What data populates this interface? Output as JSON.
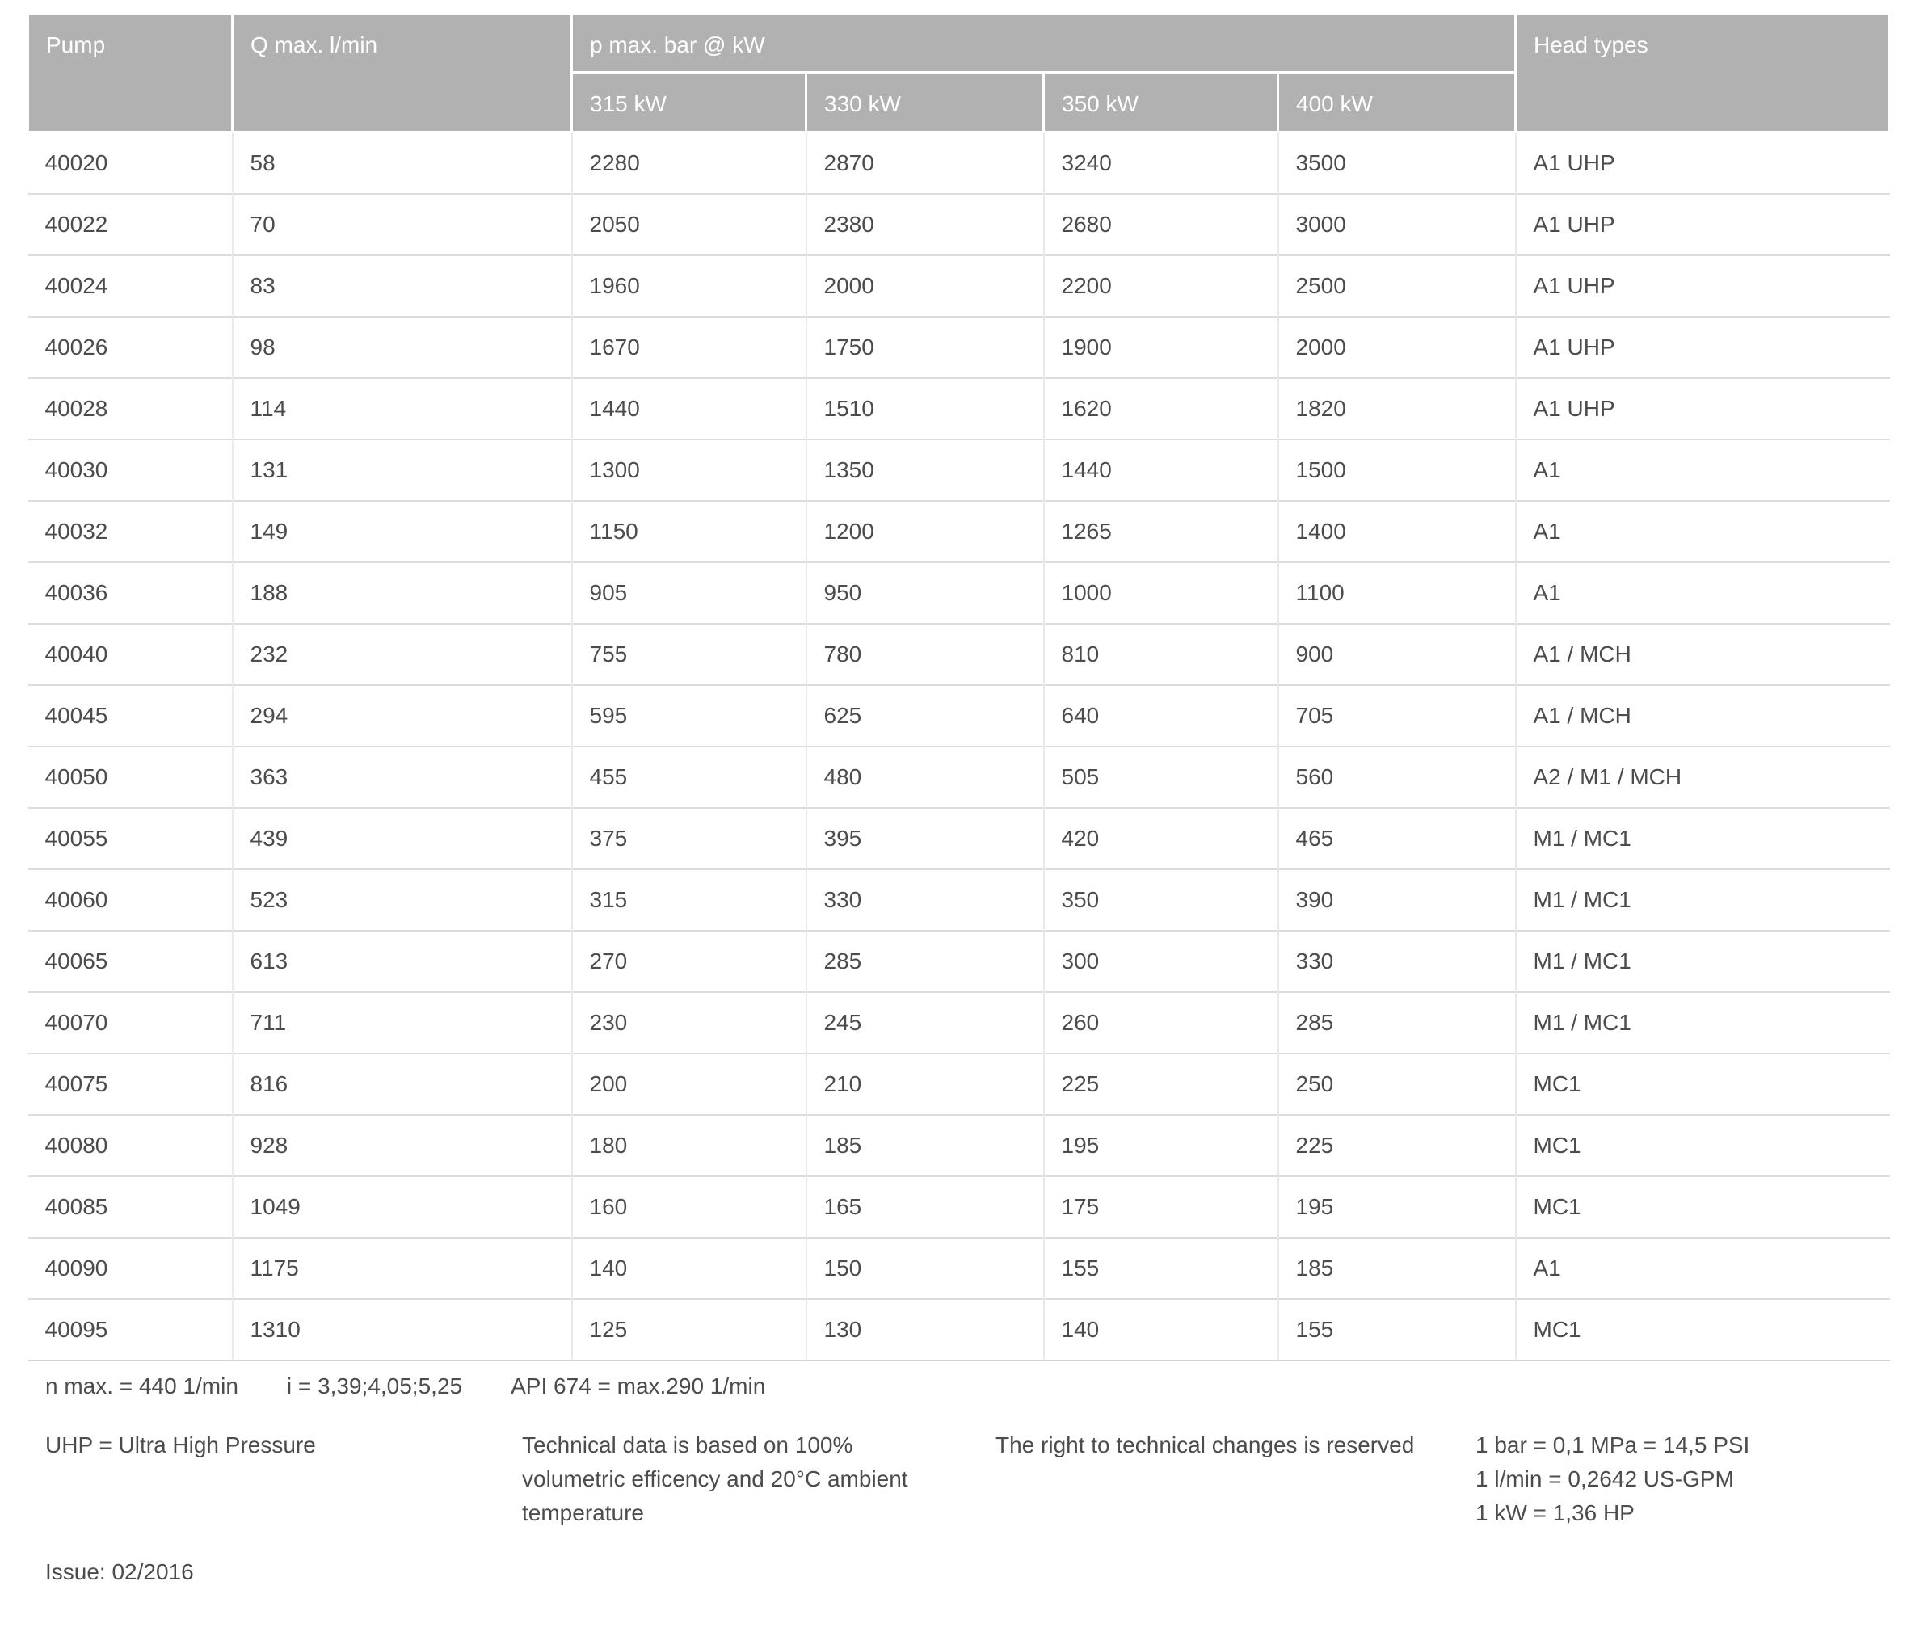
{
  "table": {
    "headers": {
      "pump": "Pump",
      "q_max": "Q max. l/min",
      "p_max_group": "p max. bar @ kW",
      "kw_columns": [
        "315 kW",
        "330 kW",
        "350 kW",
        "400 kW"
      ],
      "head_types": "Head types"
    },
    "rows": [
      {
        "pump": "40020",
        "q_max": "58",
        "p_315": "2280",
        "p_330": "2870",
        "p_350": "3240",
        "p_400": "3500",
        "head_types": "A1 UHP"
      },
      {
        "pump": "40022",
        "q_max": "70",
        "p_315": "2050",
        "p_330": "2380",
        "p_350": "2680",
        "p_400": "3000",
        "head_types": "A1 UHP"
      },
      {
        "pump": "40024",
        "q_max": "83",
        "p_315": "1960",
        "p_330": "2000",
        "p_350": "2200",
        "p_400": "2500",
        "head_types": "A1 UHP"
      },
      {
        "pump": "40026",
        "q_max": "98",
        "p_315": "1670",
        "p_330": "1750",
        "p_350": "1900",
        "p_400": "2000",
        "head_types": "A1 UHP"
      },
      {
        "pump": "40028",
        "q_max": "114",
        "p_315": "1440",
        "p_330": "1510",
        "p_350": "1620",
        "p_400": "1820",
        "head_types": "A1 UHP"
      },
      {
        "pump": "40030",
        "q_max": "131",
        "p_315": "1300",
        "p_330": "1350",
        "p_350": "1440",
        "p_400": "1500",
        "head_types": "A1"
      },
      {
        "pump": "40032",
        "q_max": "149",
        "p_315": "1150",
        "p_330": "1200",
        "p_350": "1265",
        "p_400": "1400",
        "head_types": "A1"
      },
      {
        "pump": "40036",
        "q_max": "188",
        "p_315": "905",
        "p_330": "950",
        "p_350": "1000",
        "p_400": "1100",
        "head_types": "A1"
      },
      {
        "pump": "40040",
        "q_max": "232",
        "p_315": "755",
        "p_330": "780",
        "p_350": "810",
        "p_400": "900",
        "head_types": "A1 / MCH"
      },
      {
        "pump": "40045",
        "q_max": "294",
        "p_315": "595",
        "p_330": "625",
        "p_350": "640",
        "p_400": "705",
        "head_types": "A1 / MCH"
      },
      {
        "pump": "40050",
        "q_max": "363",
        "p_315": "455",
        "p_330": "480",
        "p_350": "505",
        "p_400": "560",
        "head_types": "A2 / M1 / MCH"
      },
      {
        "pump": "40055",
        "q_max": "439",
        "p_315": "375",
        "p_330": "395",
        "p_350": "420",
        "p_400": "465",
        "head_types": "M1 / MC1"
      },
      {
        "pump": "40060",
        "q_max": "523",
        "p_315": "315",
        "p_330": "330",
        "p_350": "350",
        "p_400": "390",
        "head_types": "M1 / MC1"
      },
      {
        "pump": "40065",
        "q_max": "613",
        "p_315": "270",
        "p_330": "285",
        "p_350": "300",
        "p_400": "330",
        "head_types": "M1 / MC1"
      },
      {
        "pump": "40070",
        "q_max": "711",
        "p_315": "230",
        "p_330": "245",
        "p_350": "260",
        "p_400": "285",
        "head_types": "M1 / MC1"
      },
      {
        "pump": "40075",
        "q_max": "816",
        "p_315": "200",
        "p_330": "210",
        "p_350": "225",
        "p_400": "250",
        "head_types": "MC1"
      },
      {
        "pump": "40080",
        "q_max": "928",
        "p_315": "180",
        "p_330": "185",
        "p_350": "195",
        "p_400": "225",
        "head_types": "MC1"
      },
      {
        "pump": "40085",
        "q_max": "1049",
        "p_315": "160",
        "p_330": "165",
        "p_350": "175",
        "p_400": "195",
        "head_types": "MC1"
      },
      {
        "pump": "40090",
        "q_max": "1175",
        "p_315": "140",
        "p_330": "150",
        "p_350": "155",
        "p_400": "185",
        "head_types": "A1"
      },
      {
        "pump": "40095",
        "q_max": "1310",
        "p_315": "125",
        "p_330": "130",
        "p_350": "140",
        "p_400": "155",
        "head_types": "MC1"
      }
    ]
  },
  "footnotes": {
    "n_max": "n max. = 440 1/min",
    "i_ratios": "i = 3,39;4,05;5,25",
    "api674": "API 674 = max.290 1/min",
    "uhp": "UHP = Ultra High Pressure",
    "technical_lines": [
      "Technical data is based on 100%",
      "volumetric efficency and 20°C ambient",
      "temperature"
    ],
    "rights": "The right to technical changes is reserved",
    "conversions": [
      "1 bar = 0,1 MPa = 14,5 PSI",
      "1 l/min = 0,2642 US-GPM",
      "1 kW = 1,36 HP"
    ],
    "issue": "Issue: 02/2016"
  },
  "colors": {
    "header_bg": "#b1b1b1",
    "header_text": "#ffffff",
    "body_text": "#4c4c4c",
    "row_border": "#dcdcdc"
  }
}
